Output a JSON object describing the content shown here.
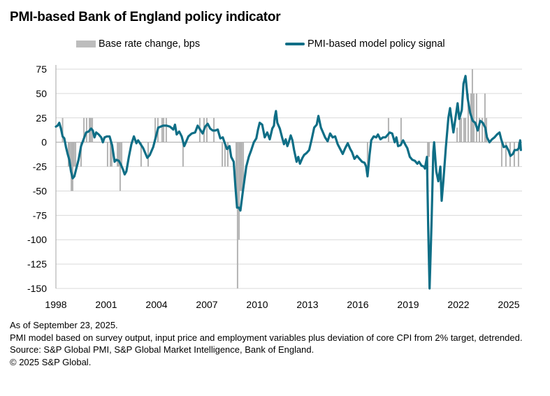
{
  "chart_data": {
    "type": "bar+line",
    "title": "PMI-based Bank of England policy indicator",
    "legend": [
      {
        "name": "Base rate change, bps",
        "type": "bar",
        "color": "#bdbdbd"
      },
      {
        "name": "PMI-based model policy signal",
        "type": "line",
        "color": "#0e6e86"
      }
    ],
    "legend_position": "top",
    "xlabel": "",
    "ylabel": "",
    "ylim": [
      -150,
      75
    ],
    "yticks": [
      75,
      50,
      25,
      0,
      -25,
      -50,
      -75,
      -100,
      -125,
      -150
    ],
    "xlim": [
      1998.0,
      2025.75
    ],
    "xticks": [
      1998,
      2001,
      2004,
      2007,
      2010,
      2013,
      2016,
      2019,
      2022,
      2025
    ],
    "grid": true,
    "series": [
      {
        "name": "Base rate change, bps",
        "type": "bar",
        "points": [
          [
            1998.4,
            25
          ],
          [
            1998.75,
            -25
          ],
          [
            1998.83,
            -25
          ],
          [
            1998.92,
            -50
          ],
          [
            1999.0,
            -50
          ],
          [
            1999.08,
            -25
          ],
          [
            1999.17,
            -25
          ],
          [
            1999.5,
            -25
          ],
          [
            1999.67,
            25
          ],
          [
            1999.83,
            25
          ],
          [
            2000.0,
            25
          ],
          [
            2000.08,
            25
          ],
          [
            2000.17,
            25
          ],
          [
            2001.08,
            -25
          ],
          [
            2001.25,
            -25
          ],
          [
            2001.33,
            -25
          ],
          [
            2001.67,
            -25
          ],
          [
            2001.75,
            -25
          ],
          [
            2001.83,
            -50
          ],
          [
            2001.92,
            -25
          ],
          [
            2003.08,
            -25
          ],
          [
            2003.5,
            -25
          ],
          [
            2003.92,
            25
          ],
          [
            2004.08,
            25
          ],
          [
            2004.33,
            25
          ],
          [
            2004.42,
            25
          ],
          [
            2004.58,
            25
          ],
          [
            2005.58,
            -25
          ],
          [
            2006.58,
            25
          ],
          [
            2006.83,
            25
          ],
          [
            2007.0,
            25
          ],
          [
            2007.42,
            25
          ],
          [
            2007.92,
            -25
          ],
          [
            2008.08,
            -25
          ],
          [
            2008.25,
            -25
          ],
          [
            2008.75,
            -50
          ],
          [
            2008.83,
            -150
          ],
          [
            2008.92,
            -100
          ],
          [
            2009.0,
            -50
          ],
          [
            2009.08,
            -50
          ],
          [
            2009.17,
            -50
          ],
          [
            2016.58,
            -25
          ],
          [
            2017.83,
            25
          ],
          [
            2018.58,
            25
          ],
          [
            2020.17,
            -50
          ],
          [
            2020.25,
            -15
          ],
          [
            2021.92,
            15
          ],
          [
            2022.08,
            25
          ],
          [
            2022.17,
            25
          ],
          [
            2022.33,
            25
          ],
          [
            2022.42,
            25
          ],
          [
            2022.58,
            50
          ],
          [
            2022.75,
            50
          ],
          [
            2022.83,
            75
          ],
          [
            2022.92,
            50
          ],
          [
            2023.08,
            50
          ],
          [
            2023.25,
            25
          ],
          [
            2023.42,
            25
          ],
          [
            2023.58,
            50
          ],
          [
            2023.67,
            25
          ],
          [
            2024.58,
            -25
          ],
          [
            2024.83,
            -25
          ],
          [
            2025.08,
            -25
          ],
          [
            2025.33,
            -25
          ],
          [
            2025.58,
            -25
          ]
        ]
      },
      {
        "name": "PMI-based model policy signal",
        "type": "line",
        "points": [
          [
            1998.0,
            16
          ],
          [
            1998.1,
            17
          ],
          [
            1998.2,
            20
          ],
          [
            1998.3,
            14
          ],
          [
            1998.4,
            6
          ],
          [
            1998.5,
            4
          ],
          [
            1998.6,
            -5
          ],
          [
            1998.7,
            -12
          ],
          [
            1998.8,
            -18
          ],
          [
            1998.9,
            -30
          ],
          [
            1999.0,
            -37
          ],
          [
            1999.1,
            -35
          ],
          [
            1999.2,
            -28
          ],
          [
            1999.35,
            -18
          ],
          [
            1999.5,
            -4
          ],
          [
            1999.65,
            3
          ],
          [
            1999.8,
            10
          ],
          [
            1999.95,
            11
          ],
          [
            2000.1,
            14
          ],
          [
            2000.2,
            12
          ],
          [
            2000.3,
            5
          ],
          [
            2000.4,
            10
          ],
          [
            2000.55,
            8
          ],
          [
            2000.7,
            5
          ],
          [
            2000.8,
            0
          ],
          [
            2000.9,
            5
          ],
          [
            2001.05,
            6
          ],
          [
            2001.2,
            6
          ],
          [
            2001.35,
            -3
          ],
          [
            2001.5,
            -20
          ],
          [
            2001.6,
            -18
          ],
          [
            2001.75,
            -19
          ],
          [
            2001.85,
            -22
          ],
          [
            2002.0,
            -28
          ],
          [
            2002.1,
            -33
          ],
          [
            2002.2,
            -30
          ],
          [
            2002.35,
            -15
          ],
          [
            2002.5,
            -2
          ],
          [
            2002.65,
            6
          ],
          [
            2002.8,
            -1
          ],
          [
            2002.9,
            2
          ],
          [
            2003.05,
            -2
          ],
          [
            2003.2,
            -6
          ],
          [
            2003.35,
            -12
          ],
          [
            2003.45,
            -16
          ],
          [
            2003.6,
            -13
          ],
          [
            2003.8,
            -5
          ],
          [
            2003.95,
            5
          ],
          [
            2004.1,
            15
          ],
          [
            2004.25,
            16
          ],
          [
            2004.4,
            17
          ],
          [
            2004.6,
            17
          ],
          [
            2004.8,
            16
          ],
          [
            2005.0,
            13
          ],
          [
            2005.1,
            18
          ],
          [
            2005.2,
            8
          ],
          [
            2005.35,
            11
          ],
          [
            2005.5,
            6
          ],
          [
            2005.65,
            -4
          ],
          [
            2005.75,
            0
          ],
          [
            2005.9,
            6
          ],
          [
            2006.1,
            9
          ],
          [
            2006.3,
            10
          ],
          [
            2006.45,
            17
          ],
          [
            2006.6,
            13
          ],
          [
            2006.75,
            9
          ],
          [
            2006.9,
            16
          ],
          [
            2007.05,
            19
          ],
          [
            2007.2,
            14
          ],
          [
            2007.35,
            12
          ],
          [
            2007.5,
            12
          ],
          [
            2007.65,
            13
          ],
          [
            2007.8,
            4
          ],
          [
            2007.95,
            5
          ],
          [
            2008.05,
            0
          ],
          [
            2008.2,
            -7
          ],
          [
            2008.35,
            -4
          ],
          [
            2008.45,
            -15
          ],
          [
            2008.6,
            -20
          ],
          [
            2008.7,
            -45
          ],
          [
            2008.8,
            -67
          ],
          [
            2008.9,
            -67
          ],
          [
            2009.0,
            -70
          ],
          [
            2009.15,
            -50
          ],
          [
            2009.35,
            -25
          ],
          [
            2009.5,
            -15
          ],
          [
            2009.65,
            -8
          ],
          [
            2009.8,
            0
          ],
          [
            2009.95,
            4
          ],
          [
            2010.05,
            13
          ],
          [
            2010.15,
            20
          ],
          [
            2010.3,
            18
          ],
          [
            2010.45,
            5
          ],
          [
            2010.6,
            10
          ],
          [
            2010.75,
            3
          ],
          [
            2010.9,
            14
          ],
          [
            2011.0,
            17
          ],
          [
            2011.05,
            26
          ],
          [
            2011.12,
            32
          ],
          [
            2011.2,
            20
          ],
          [
            2011.35,
            14
          ],
          [
            2011.5,
            4
          ],
          [
            2011.6,
            -2
          ],
          [
            2011.7,
            3
          ],
          [
            2011.8,
            -4
          ],
          [
            2011.9,
            1
          ],
          [
            2012.0,
            7
          ],
          [
            2012.1,
            2
          ],
          [
            2012.2,
            -8
          ],
          [
            2012.35,
            -20
          ],
          [
            2012.45,
            -15
          ],
          [
            2012.55,
            -22
          ],
          [
            2012.7,
            -16
          ],
          [
            2012.8,
            -13
          ],
          [
            2012.95,
            -11
          ],
          [
            2013.1,
            -8
          ],
          [
            2013.25,
            3
          ],
          [
            2013.4,
            15
          ],
          [
            2013.55,
            18
          ],
          [
            2013.65,
            27
          ],
          [
            2013.8,
            15
          ],
          [
            2013.9,
            11
          ],
          [
            2014.05,
            5
          ],
          [
            2014.2,
            1
          ],
          [
            2014.35,
            9
          ],
          [
            2014.5,
            5
          ],
          [
            2014.65,
            6
          ],
          [
            2014.8,
            -2
          ],
          [
            2014.95,
            -7
          ],
          [
            2015.1,
            -12
          ],
          [
            2015.25,
            -6
          ],
          [
            2015.4,
            -1
          ],
          [
            2015.55,
            -7
          ],
          [
            2015.65,
            -10
          ],
          [
            2015.8,
            -17
          ],
          [
            2015.95,
            -14
          ],
          [
            2016.1,
            -17
          ],
          [
            2016.25,
            -20
          ],
          [
            2016.4,
            -21
          ],
          [
            2016.5,
            -25
          ],
          [
            2016.58,
            -35
          ],
          [
            2016.7,
            -13
          ],
          [
            2016.8,
            2
          ],
          [
            2016.95,
            6
          ],
          [
            2017.1,
            5
          ],
          [
            2017.2,
            8
          ],
          [
            2017.35,
            3
          ],
          [
            2017.5,
            5
          ],
          [
            2017.65,
            5
          ],
          [
            2017.8,
            8
          ],
          [
            2017.9,
            10
          ],
          [
            2018.05,
            9
          ],
          [
            2018.2,
            0
          ],
          [
            2018.3,
            5
          ],
          [
            2018.4,
            -4
          ],
          [
            2018.55,
            -3
          ],
          [
            2018.7,
            2
          ],
          [
            2018.85,
            -3
          ],
          [
            2018.95,
            -6
          ],
          [
            2019.1,
            -15
          ],
          [
            2019.25,
            -18
          ],
          [
            2019.4,
            -19
          ],
          [
            2019.55,
            -22
          ],
          [
            2019.65,
            -20
          ],
          [
            2019.8,
            -24
          ],
          [
            2019.95,
            -25
          ],
          [
            2020.0,
            -27
          ],
          [
            2020.12,
            -15
          ],
          [
            2020.2,
            -90
          ],
          [
            2020.28,
            -170
          ],
          [
            2020.4,
            -80
          ],
          [
            2020.5,
            -10
          ],
          [
            2020.55,
            0
          ],
          [
            2020.68,
            -30
          ],
          [
            2020.8,
            -40
          ],
          [
            2020.92,
            -25
          ],
          [
            2021.0,
            -60
          ],
          [
            2021.1,
            -40
          ],
          [
            2021.25,
            -5
          ],
          [
            2021.4,
            25
          ],
          [
            2021.5,
            35
          ],
          [
            2021.58,
            25
          ],
          [
            2021.7,
            10
          ],
          [
            2021.85,
            28
          ],
          [
            2021.95,
            40
          ],
          [
            2022.05,
            24
          ],
          [
            2022.2,
            33
          ],
          [
            2022.3,
            60
          ],
          [
            2022.42,
            68
          ],
          [
            2022.55,
            45
          ],
          [
            2022.7,
            30
          ],
          [
            2022.85,
            22
          ],
          [
            2023.0,
            20
          ],
          [
            2023.15,
            12
          ],
          [
            2023.3,
            22
          ],
          [
            2023.45,
            20
          ],
          [
            2023.6,
            15
          ],
          [
            2023.7,
            5
          ],
          [
            2023.85,
            0
          ],
          [
            2024.0,
            3
          ],
          [
            2024.15,
            5
          ],
          [
            2024.3,
            8
          ],
          [
            2024.45,
            10
          ],
          [
            2024.55,
            3
          ],
          [
            2024.7,
            -5
          ],
          [
            2024.85,
            -4
          ],
          [
            2025.0,
            -9
          ],
          [
            2025.1,
            -14
          ],
          [
            2025.25,
            -12
          ],
          [
            2025.35,
            -8
          ],
          [
            2025.5,
            -8
          ],
          [
            2025.6,
            -6
          ],
          [
            2025.68,
            2
          ],
          [
            2025.72,
            -8
          ]
        ]
      }
    ]
  },
  "notes": {
    "as_of": "As of September 23, 2025.",
    "methodology": "PMI model based on survey output, input price and employment variables plus deviation of core CPI from 2% target, detrended.",
    "source": "Source: S&P Global PMI, S&P Global Market Intelligence, Bank of England.",
    "copyright": "© 2025 S&P Global."
  }
}
